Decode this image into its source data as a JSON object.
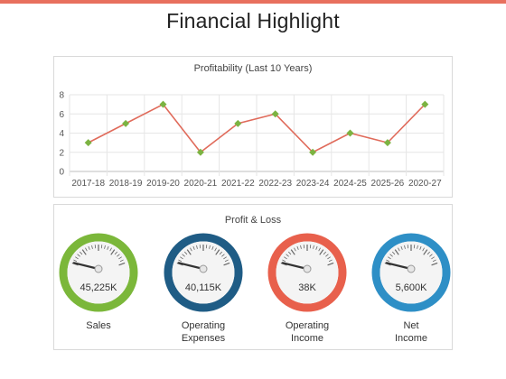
{
  "page": {
    "title": "Financial Highlight"
  },
  "colors": {
    "accent": "#e8705e",
    "line": "#e06b5b",
    "marker": "#7cb342"
  },
  "chart_data": {
    "type": "line",
    "title": "Profitability (Last 10 Years)",
    "categories": [
      "2017-18",
      "2018-19",
      "2019-20",
      "2020-21",
      "2021-22",
      "2022-23",
      "2023-24",
      "2024-25",
      "2025-26",
      "2020-27"
    ],
    "series": [
      {
        "values": [
          3,
          5,
          7,
          2,
          5,
          6,
          2,
          4,
          3,
          7
        ]
      }
    ],
    "ylim": [
      0,
      8
    ],
    "yticks": [
      0,
      2,
      4,
      6,
      8
    ],
    "grid": true,
    "xlabel": "",
    "ylabel": ""
  },
  "profit_loss": {
    "title": "Profit & Loss",
    "gauges": [
      {
        "value": "45,225K",
        "label": [
          "Sales"
        ],
        "color": "#7bb73a"
      },
      {
        "value": "40,115K",
        "label": [
          "Operating",
          "Expenses"
        ],
        "color": "#1f5c85"
      },
      {
        "value": "38K",
        "label": [
          "Operating",
          "Income"
        ],
        "color": "#e8604c"
      },
      {
        "value": "5,600K",
        "label": [
          "Net",
          "Income"
        ],
        "color": "#2e8fc6"
      }
    ]
  }
}
